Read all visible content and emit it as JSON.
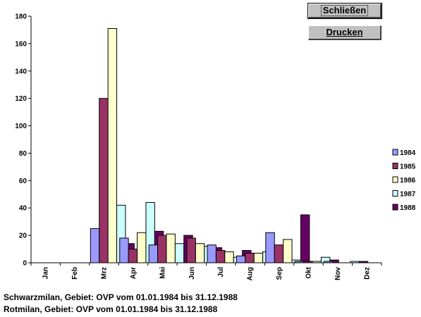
{
  "buttons": {
    "close_label": "Schließen",
    "print_label": "Drucken"
  },
  "footer": {
    "line1": "Schwarzmilan, Gebiet: OVP vom 01.01.1984 bis 31.12.1988",
    "line2": "Rotmilan, Gebiet: OVP vom 01.01.1984 bis 31.12.1988"
  },
  "chart_data": {
    "type": "bar",
    "categories": [
      "Jan",
      "Feb",
      "Mrz",
      "Apr",
      "Mai",
      "Jun",
      "Jul",
      "Aug",
      "Sep",
      "Okt",
      "Nov",
      "Dez"
    ],
    "ylim": [
      0,
      180
    ],
    "yticks": [
      0,
      20,
      40,
      60,
      80,
      100,
      120,
      140,
      160,
      180
    ],
    "legend_position": "right",
    "grid": false,
    "series": [
      {
        "name": "1984",
        "color": "#9999ff",
        "values": [
          0,
          0,
          25,
          18,
          13,
          0,
          13,
          5,
          22,
          1,
          1,
          0
        ]
      },
      {
        "name": "1985",
        "color": "#993366",
        "values": [
          0,
          0,
          120,
          10,
          20,
          18,
          9,
          7,
          13,
          1,
          0,
          0
        ]
      },
      {
        "name": "1986",
        "color": "#ffffcc",
        "values": [
          0,
          0,
          171,
          22,
          21,
          14,
          8,
          7,
          17,
          1,
          0,
          0
        ]
      },
      {
        "name": "1987",
        "color": "#ccffff",
        "values": [
          0,
          0,
          42,
          44,
          14,
          12,
          4,
          8,
          2,
          4,
          1,
          0
        ]
      },
      {
        "name": "1988",
        "color": "#660066",
        "values": [
          0,
          1,
          14,
          23,
          20,
          11,
          9,
          3,
          35,
          2,
          1,
          0
        ]
      }
    ]
  }
}
